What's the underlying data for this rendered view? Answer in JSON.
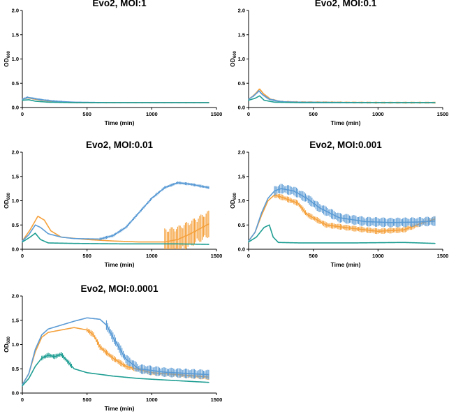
{
  "colors": {
    "blue": "#5b9bd5",
    "orange": "#f5a13c",
    "teal": "#1f9e93",
    "axis": "#000000"
  },
  "chart_data": [
    {
      "type": "line",
      "title": "Evo2, MOI:1",
      "xlabel": "Time (min)",
      "ylabel_main": "OD",
      "ylabel_sub": "600",
      "xlim": [
        0,
        1500
      ],
      "ylim": [
        0,
        2.0
      ],
      "xticks": [
        "0",
        "500",
        "1000",
        "1500"
      ],
      "yticks": [
        "0.0",
        "0.5",
        "1.0",
        "1.5",
        "2.0"
      ],
      "series": [
        {
          "name": "blue",
          "color": "#5b9bd5",
          "points": [
            [
              0,
              0.17
            ],
            [
              40,
              0.21
            ],
            [
              80,
              0.19
            ],
            [
              150,
              0.16
            ],
            [
              250,
              0.13
            ],
            [
              400,
              0.11
            ],
            [
              700,
              0.1
            ],
            [
              1000,
              0.1
            ],
            [
              1440,
              0.1
            ]
          ],
          "err": 0.02,
          "err_from": 0,
          "err_to": 300
        },
        {
          "name": "orange",
          "color": "#f5a13c",
          "points": [
            [
              0,
              0.17
            ],
            [
              40,
              0.2
            ],
            [
              80,
              0.18
            ],
            [
              150,
              0.15
            ],
            [
              250,
              0.12
            ],
            [
              400,
              0.1
            ],
            [
              700,
              0.1
            ],
            [
              1000,
              0.1
            ],
            [
              1440,
              0.1
            ]
          ],
          "err": 0.015,
          "err_from": 0,
          "err_to": 1440
        },
        {
          "name": "teal",
          "color": "#1f9e93",
          "points": [
            [
              0,
              0.15
            ],
            [
              50,
              0.16
            ],
            [
              100,
              0.13
            ],
            [
              200,
              0.11
            ],
            [
              400,
              0.1
            ],
            [
              1000,
              0.1
            ],
            [
              1440,
              0.1
            ]
          ],
          "err": 0,
          "err_from": 0,
          "err_to": 0
        }
      ]
    },
    {
      "type": "line",
      "title": "Evo2, MOI:0.1",
      "xlabel": "Time (min)",
      "ylabel_main": "OD",
      "ylabel_sub": "600",
      "xlim": [
        0,
        1500
      ],
      "ylim": [
        0,
        2.0
      ],
      "xticks": [
        "0",
        "500",
        "1000",
        "1500"
      ],
      "yticks": [
        "0.0",
        "0.5",
        "1.0",
        "1.5",
        "2.0"
      ],
      "series": [
        {
          "name": "blue",
          "color": "#5b9bd5",
          "points": [
            [
              0,
              0.17
            ],
            [
              40,
              0.24
            ],
            [
              80,
              0.34
            ],
            [
              110,
              0.26
            ],
            [
              160,
              0.17
            ],
            [
              250,
              0.12
            ],
            [
              400,
              0.11
            ],
            [
              1000,
              0.1
            ],
            [
              1440,
              0.1
            ]
          ],
          "err": 0.02,
          "err_from": 40,
          "err_to": 260
        },
        {
          "name": "orange",
          "color": "#f5a13c",
          "points": [
            [
              0,
              0.17
            ],
            [
              40,
              0.25
            ],
            [
              85,
              0.38
            ],
            [
              120,
              0.27
            ],
            [
              170,
              0.17
            ],
            [
              250,
              0.12
            ],
            [
              400,
              0.11
            ],
            [
              1000,
              0.1
            ],
            [
              1440,
              0.1
            ]
          ],
          "err": 0.02,
          "err_from": 40,
          "err_to": 1440
        },
        {
          "name": "teal",
          "color": "#1f9e93",
          "points": [
            [
              0,
              0.15
            ],
            [
              50,
              0.19
            ],
            [
              85,
              0.24
            ],
            [
              120,
              0.15
            ],
            [
              200,
              0.11
            ],
            [
              400,
              0.1
            ],
            [
              1440,
              0.1
            ]
          ],
          "err": 0,
          "err_from": 0,
          "err_to": 0
        }
      ]
    },
    {
      "type": "line",
      "title": "Evo2, MOI:0.01",
      "xlabel": "Time (min)",
      "ylabel_main": "OD",
      "ylabel_sub": "600",
      "xlim": [
        0,
        1500
      ],
      "ylim": [
        0,
        2.0
      ],
      "xticks": [
        "0",
        "500",
        "1000",
        "1500"
      ],
      "yticks": [
        "0.0",
        "0.5",
        "1.0",
        "1.5",
        "2.0"
      ],
      "series": [
        {
          "name": "blue",
          "color": "#5b9bd5",
          "points": [
            [
              0,
              0.17
            ],
            [
              50,
              0.3
            ],
            [
              100,
              0.5
            ],
            [
              140,
              0.45
            ],
            [
              200,
              0.32
            ],
            [
              300,
              0.25
            ],
            [
              400,
              0.22
            ],
            [
              600,
              0.21
            ],
            [
              700,
              0.28
            ],
            [
              800,
              0.45
            ],
            [
              900,
              0.75
            ],
            [
              1000,
              1.05
            ],
            [
              1100,
              1.27
            ],
            [
              1200,
              1.37
            ],
            [
              1300,
              1.34
            ],
            [
              1440,
              1.27
            ]
          ],
          "err": 0.03,
          "err_from": 600,
          "err_to": 1440
        },
        {
          "name": "orange",
          "color": "#f5a13c",
          "points": [
            [
              0,
              0.17
            ],
            [
              60,
              0.4
            ],
            [
              120,
              0.68
            ],
            [
              170,
              0.6
            ],
            [
              220,
              0.38
            ],
            [
              300,
              0.25
            ],
            [
              500,
              0.2
            ],
            [
              700,
              0.17
            ],
            [
              900,
              0.15
            ],
            [
              1100,
              0.15
            ],
            [
              1200,
              0.2
            ],
            [
              1300,
              0.32
            ],
            [
              1440,
              0.52
            ]
          ],
          "err": 0.28,
          "err_from": 1100,
          "err_to": 1440
        },
        {
          "name": "teal",
          "color": "#1f9e93",
          "points": [
            [
              0,
              0.15
            ],
            [
              60,
              0.25
            ],
            [
              100,
              0.33
            ],
            [
              140,
              0.2
            ],
            [
              200,
              0.13
            ],
            [
              400,
              0.12
            ],
            [
              800,
              0.11
            ],
            [
              1200,
              0.11
            ],
            [
              1440,
              0.1
            ]
          ],
          "err": 0,
          "err_from": 0,
          "err_to": 0
        }
      ]
    },
    {
      "type": "line",
      "title": "Evo2, MOI:0.001",
      "xlabel": "Time (min)",
      "ylabel_main": "OD",
      "ylabel_sub": "600",
      "xlim": [
        0,
        1500
      ],
      "ylim": [
        0,
        2.0
      ],
      "xticks": [
        "0",
        "500",
        "1000",
        "1500"
      ],
      "yticks": [
        "0.0",
        "0.5",
        "1.0",
        "1.5",
        "2.0"
      ],
      "series": [
        {
          "name": "blue",
          "color": "#5b9bd5",
          "points": [
            [
              0,
              0.17
            ],
            [
              50,
              0.35
            ],
            [
              100,
              0.75
            ],
            [
              150,
              1.05
            ],
            [
              200,
              1.2
            ],
            [
              250,
              1.25
            ],
            [
              350,
              1.2
            ],
            [
              450,
              1.05
            ],
            [
              550,
              0.85
            ],
            [
              700,
              0.65
            ],
            [
              900,
              0.57
            ],
            [
              1100,
              0.55
            ],
            [
              1300,
              0.56
            ],
            [
              1440,
              0.58
            ]
          ],
          "err": 0.1,
          "err_from": 200,
          "err_to": 1440
        },
        {
          "name": "orange",
          "color": "#f5a13c",
          "points": [
            [
              0,
              0.17
            ],
            [
              50,
              0.35
            ],
            [
              100,
              0.7
            ],
            [
              150,
              1.0
            ],
            [
              200,
              1.12
            ],
            [
              280,
              1.05
            ],
            [
              380,
              0.95
            ],
            [
              450,
              0.72
            ],
            [
              600,
              0.5
            ],
            [
              800,
              0.43
            ],
            [
              1000,
              0.37
            ],
            [
              1200,
              0.4
            ],
            [
              1350,
              0.55
            ],
            [
              1440,
              0.62
            ]
          ],
          "err": 0.06,
          "err_from": 200,
          "err_to": 1440
        },
        {
          "name": "teal",
          "color": "#1f9e93",
          "points": [
            [
              0,
              0.15
            ],
            [
              60,
              0.25
            ],
            [
              120,
              0.45
            ],
            [
              160,
              0.5
            ],
            [
              190,
              0.25
            ],
            [
              230,
              0.14
            ],
            [
              400,
              0.13
            ],
            [
              800,
              0.13
            ],
            [
              1200,
              0.14
            ],
            [
              1440,
              0.12
            ]
          ],
          "err": 0,
          "err_from": 0,
          "err_to": 0
        }
      ]
    },
    {
      "type": "line",
      "title": "Evo2, MOI:0.0001",
      "xlabel": "Time (min)",
      "ylabel_main": "OD",
      "ylabel_sub": "600",
      "xlim": [
        0,
        1500
      ],
      "ylim": [
        0,
        2.0
      ],
      "xticks": [
        "0",
        "500",
        "1000",
        "1500"
      ],
      "yticks": [
        "0.0",
        "0.5",
        "1.0",
        "1.5",
        "2.0"
      ],
      "series": [
        {
          "name": "blue",
          "color": "#5b9bd5",
          "points": [
            [
              0,
              0.17
            ],
            [
              50,
              0.4
            ],
            [
              100,
              0.9
            ],
            [
              150,
              1.2
            ],
            [
              200,
              1.32
            ],
            [
              300,
              1.4
            ],
            [
              400,
              1.48
            ],
            [
              500,
              1.55
            ],
            [
              600,
              1.52
            ],
            [
              650,
              1.4
            ],
            [
              700,
              1.15
            ],
            [
              800,
              0.7
            ],
            [
              900,
              0.5
            ],
            [
              1100,
              0.43
            ],
            [
              1300,
              0.4
            ],
            [
              1440,
              0.38
            ]
          ],
          "err": 0.1,
          "err_from": 650,
          "err_to": 1440
        },
        {
          "name": "orange",
          "color": "#f5a13c",
          "points": [
            [
              0,
              0.17
            ],
            [
              50,
              0.4
            ],
            [
              100,
              0.85
            ],
            [
              150,
              1.15
            ],
            [
              200,
              1.25
            ],
            [
              300,
              1.3
            ],
            [
              400,
              1.35
            ],
            [
              500,
              1.3
            ],
            [
              550,
              1.2
            ],
            [
              600,
              0.95
            ],
            [
              700,
              0.72
            ],
            [
              800,
              0.55
            ],
            [
              1000,
              0.42
            ],
            [
              1200,
              0.38
            ],
            [
              1440,
              0.33
            ]
          ],
          "err": 0.06,
          "err_from": 500,
          "err_to": 1440
        },
        {
          "name": "teal",
          "color": "#1f9e93",
          "points": [
            [
              0,
              0.15
            ],
            [
              50,
              0.3
            ],
            [
              100,
              0.55
            ],
            [
              150,
              0.72
            ],
            [
              200,
              0.78
            ],
            [
              250,
              0.75
            ],
            [
              300,
              0.8
            ],
            [
              350,
              0.65
            ],
            [
              400,
              0.5
            ],
            [
              500,
              0.42
            ],
            [
              700,
              0.35
            ],
            [
              900,
              0.3
            ],
            [
              1100,
              0.27
            ],
            [
              1300,
              0.24
            ],
            [
              1440,
              0.22
            ]
          ],
          "err": 0.05,
          "err_from": 150,
          "err_to": 380
        }
      ]
    }
  ]
}
